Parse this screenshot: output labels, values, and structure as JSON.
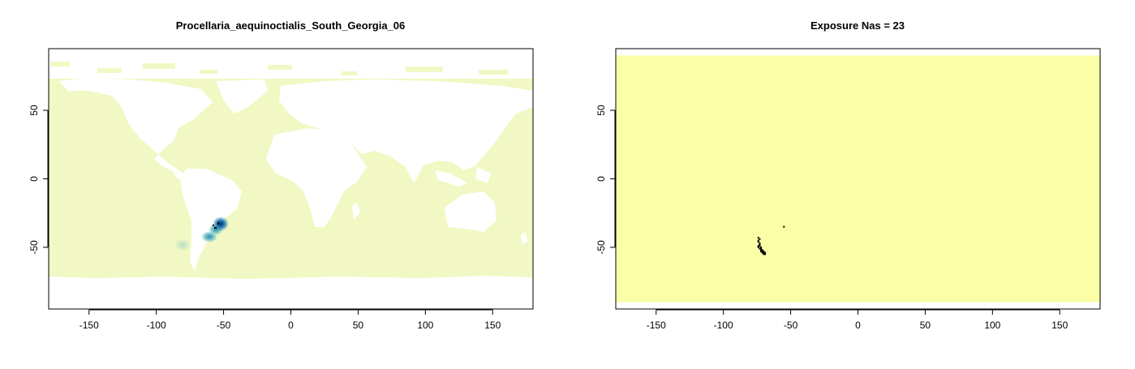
{
  "chart_data": [
    {
      "type": "heatmap",
      "title": "Procellaria_aequinoctialis_South_Georgia_06",
      "xlabel": "",
      "ylabel": "",
      "xlim": [
        -180,
        180
      ],
      "ylim": [
        -95,
        95
      ],
      "xticks": [
        -150,
        -100,
        -50,
        0,
        50,
        100,
        150
      ],
      "yticks": [
        50,
        0,
        -50
      ],
      "grid": false,
      "background_color": "#f1f8c4",
      "land_color": "#ffffff",
      "hotspots": [
        {
          "lon": -52,
          "lat": -35,
          "intensity": 1.0,
          "color": "#08306b"
        },
        {
          "lon": -56,
          "lat": -40,
          "intensity": 0.75,
          "color": "#1d6fa9"
        },
        {
          "lon": -60,
          "lat": -44,
          "intensity": 0.55,
          "color": "#3a9fbf"
        },
        {
          "lon": -72,
          "lat": -48,
          "intensity": 0.2,
          "color": "#c7e9c0"
        }
      ]
    },
    {
      "type": "heatmap",
      "title": "Exposure Nas = 23",
      "xlabel": "",
      "ylabel": "",
      "xlim": [
        -180,
        180
      ],
      "ylim": [
        -95,
        95
      ],
      "xticks": [
        -150,
        -100,
        -50,
        0,
        50,
        100,
        150
      ],
      "yticks": [
        50,
        0,
        -50
      ],
      "grid": false,
      "fill_color": "#fafea6",
      "fill_lat_range": [
        -90,
        90
      ],
      "na_color": "#000000",
      "na_cells": [
        [
          -74,
          -43
        ],
        [
          -74,
          -45
        ],
        [
          -73,
          -47
        ],
        [
          -74,
          -49
        ],
        [
          -73,
          -51
        ],
        [
          -72,
          -52
        ],
        [
          -71,
          -53
        ],
        [
          -70,
          -54
        ],
        [
          -69,
          -55
        ],
        [
          -72,
          -50
        ],
        [
          -55,
          -35
        ],
        [
          -73,
          -44
        ],
        [
          -74,
          -46
        ],
        [
          -73,
          -48
        ],
        [
          -72,
          -51
        ],
        [
          -71,
          -52
        ],
        [
          -70,
          -53
        ],
        [
          -69,
          -54
        ],
        [
          -70,
          -55
        ],
        [
          -74,
          -50
        ],
        [
          -73,
          -49
        ],
        [
          -72,
          -53
        ],
        [
          -71,
          -54
        ]
      ]
    }
  ]
}
